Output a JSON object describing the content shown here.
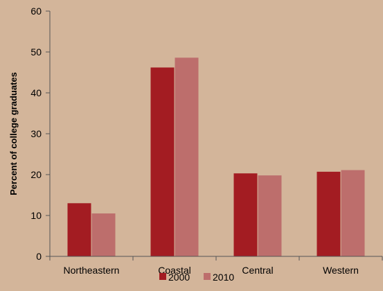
{
  "chart_data": {
    "type": "bar",
    "title": "",
    "xlabel": "",
    "ylabel": "Percent of college graduates",
    "categories": [
      "Northeastern",
      "Coastal",
      "Central",
      "Western"
    ],
    "series": [
      {
        "name": "2000",
        "color": "#a31c22",
        "values": [
          13.0,
          46.2,
          20.3,
          20.7
        ]
      },
      {
        "name": "2010",
        "color": "#bd6e6c",
        "values": [
          10.5,
          48.6,
          19.8,
          21.1
        ]
      }
    ],
    "ylim": [
      0,
      60
    ],
    "yticks": [
      0,
      10,
      20,
      30,
      40,
      50,
      60
    ],
    "grid": false,
    "legend_position": "bottom"
  }
}
